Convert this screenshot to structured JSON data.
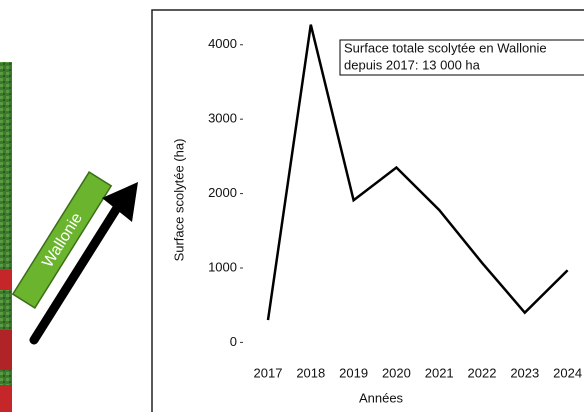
{
  "banner": "Wallonie",
  "chart_data": {
    "type": "line",
    "x_label": "Années",
    "y_label": "Surface scolytée (ha)",
    "annotation": [
      "Surface totale scolytée en Wallonie",
      "depuis 2017: 13 000 ha"
    ],
    "categories": [
      "2017",
      "2018",
      "2019",
      "2020",
      "2021",
      "2022",
      "2023",
      "2024"
    ],
    "values": [
      300,
      4270,
      1910,
      2350,
      1780,
      1070,
      400,
      970
    ],
    "color": "#000000",
    "ylim": [
      -250,
      4400
    ],
    "yticks": [
      0,
      1000,
      2000,
      3000,
      4000
    ],
    "grid": false
  }
}
